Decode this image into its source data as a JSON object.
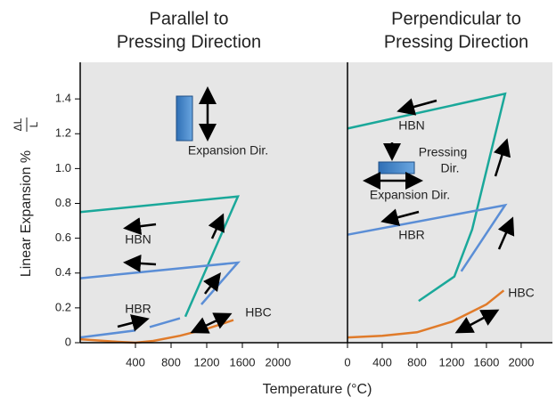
{
  "y_label": "Linear Expansion %",
  "y_label_fraction": {
    "numerator": "ΔL",
    "denominator": "L"
  },
  "x_label": "Temperature (°C)",
  "chart_data": [
    {
      "type": "line",
      "title_lines": [
        "Parallel to",
        "Pressing Direction"
      ],
      "xlim": [
        -220,
        2780
      ],
      "xticks": [
        400,
        800,
        1200,
        1600,
        2000
      ],
      "ylim": [
        0,
        1.6
      ],
      "yticks": [
        0,
        0.2,
        0.4,
        0.6,
        0.8,
        {
          "value": 1,
          "label": "1.0"
        },
        1.2,
        1.4
      ],
      "series": [
        {
          "name": "HBN",
          "color": "#1aa89a",
          "x": [
            -220,
            1550,
            960
          ],
          "values": [
            0.75,
            0.84,
            0.15
          ]
        },
        {
          "name": "HBR",
          "color": "#5b8ed6",
          "x": [
            -220,
            400,
            null,
            560,
            900,
            null,
            1140,
            1550,
            -220
          ],
          "values": [
            0.03,
            0.07,
            null,
            0.09,
            0.14,
            null,
            0.22,
            0.46,
            0.37
          ]
        },
        {
          "name": "HBC",
          "color": "#e07b2a",
          "x": [
            -220,
            200,
            400,
            600,
            900,
            1200,
            1500
          ],
          "values": [
            0.02,
            0.005,
            0,
            0.01,
            0.04,
            0.08,
            0.13
          ]
        }
      ],
      "annotations": [
        "Expansion Dir."
      ]
    },
    {
      "type": "line",
      "title_lines": [
        "Perpendicular to",
        "Pressing Direction"
      ],
      "xlim": [
        0,
        2360
      ],
      "xticks": [
        0,
        400,
        800,
        1200,
        1600,
        2000
      ],
      "ylim": [
        0,
        1.6
      ],
      "series": [
        {
          "name": "HBN",
          "color": "#1aa89a",
          "x": [
            0,
            1815,
            1435,
            1230,
            820
          ],
          "values": [
            1.23,
            1.43,
            0.65,
            0.38,
            0.24
          ]
        },
        {
          "name": "HBR",
          "color": "#5b8ed6",
          "x": [
            0,
            1815,
            1310
          ],
          "values": [
            0.62,
            0.79,
            0.41
          ]
        },
        {
          "name": "HBC",
          "color": "#e07b2a",
          "x": [
            0,
            400,
            800,
            1200,
            1600,
            1800
          ],
          "values": [
            0.03,
            0.04,
            0.06,
            0.12,
            0.22,
            0.3
          ]
        }
      ],
      "annotations": [
        "Pressing",
        "Dir.",
        "Expansion Dir."
      ]
    }
  ]
}
